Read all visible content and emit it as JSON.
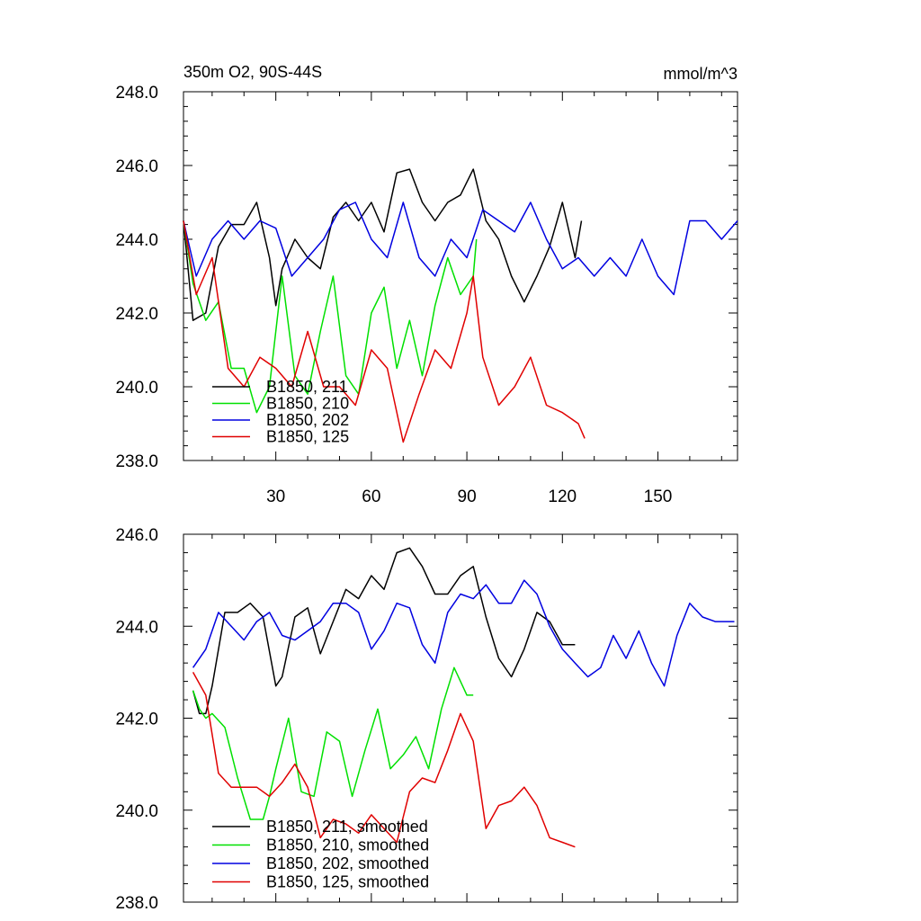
{
  "chart_data": [
    {
      "type": "line",
      "title": "350m O2, 90S-44S",
      "units": "mmol/m^3",
      "xlabel": "",
      "ylabel": "",
      "xlim": [
        1,
        175
      ],
      "ylim": [
        238,
        248
      ],
      "xticks": [
        30,
        60,
        90,
        120,
        150
      ],
      "xtick_labels": [
        "30",
        "60",
        "90",
        "120",
        "150"
      ],
      "yticks": [
        238,
        240,
        242,
        244,
        246,
        248
      ],
      "ytick_labels": [
        "238.0",
        "240.0",
        "242.0",
        "244.0",
        "246.0",
        "248.0"
      ],
      "legend": "lower-left",
      "series": [
        {
          "name": "B1850, 211",
          "color": "#000000",
          "x": [
            1,
            4,
            8,
            12,
            16,
            20,
            24,
            28,
            30,
            32,
            36,
            40,
            44,
            48,
            52,
            56,
            60,
            64,
            68,
            72,
            76,
            80,
            84,
            88,
            92,
            96,
            100,
            104,
            108,
            112,
            116,
            120,
            124,
            126
          ],
          "y": [
            244.5,
            241.8,
            242.0,
            243.8,
            244.4,
            244.4,
            245.0,
            243.5,
            242.2,
            243.2,
            244.0,
            243.5,
            243.2,
            244.6,
            245.0,
            244.5,
            245.0,
            244.2,
            245.8,
            245.9,
            245.0,
            244.5,
            245.0,
            245.2,
            245.9,
            244.5,
            244.0,
            243.0,
            242.3,
            243.0,
            243.8,
            245.0,
            243.5,
            244.5
          ]
        },
        {
          "name": "B1850, 210",
          "color": "#00e000",
          "x": [
            1,
            4,
            8,
            12,
            16,
            20,
            24,
            28,
            32,
            36,
            40,
            44,
            48,
            52,
            56,
            60,
            64,
            68,
            72,
            76,
            80,
            84,
            88,
            92,
            93
          ],
          "y": [
            244.5,
            242.8,
            241.8,
            242.3,
            240.5,
            240.5,
            239.3,
            240.0,
            243.0,
            240.3,
            239.8,
            241.5,
            243.0,
            240.3,
            239.8,
            242.0,
            242.7,
            240.5,
            241.8,
            240.3,
            242.2,
            243.5,
            242.5,
            243.0,
            244.0
          ]
        },
        {
          "name": "B1850, 202",
          "color": "#0000e0",
          "x": [
            1,
            5,
            10,
            15,
            20,
            25,
            30,
            35,
            40,
            45,
            50,
            55,
            60,
            65,
            70,
            75,
            80,
            85,
            90,
            95,
            100,
            105,
            110,
            115,
            120,
            125,
            130,
            135,
            140,
            145,
            150,
            155,
            160,
            165,
            170,
            175
          ],
          "y": [
            244.5,
            243.0,
            244.0,
            244.5,
            244.0,
            244.5,
            244.3,
            243.0,
            243.5,
            244.0,
            244.8,
            245.0,
            244.0,
            243.5,
            245.0,
            243.5,
            243.0,
            244.0,
            243.5,
            244.8,
            244.5,
            244.2,
            245.0,
            244.0,
            243.2,
            243.5,
            243.0,
            243.5,
            243.0,
            244.0,
            243.0,
            242.5,
            244.5,
            244.5,
            244.0,
            244.5
          ]
        },
        {
          "name": "B1850, 125",
          "color": "#e00000",
          "x": [
            1,
            5,
            10,
            15,
            20,
            25,
            30,
            35,
            40,
            45,
            50,
            55,
            60,
            65,
            70,
            75,
            80,
            85,
            90,
            92,
            95,
            100,
            105,
            110,
            115,
            120,
            125,
            127
          ],
          "y": [
            244.5,
            242.5,
            243.5,
            240.5,
            240.0,
            240.8,
            240.5,
            240.0,
            241.5,
            240.0,
            240.0,
            239.5,
            241.0,
            240.5,
            238.5,
            239.8,
            241.0,
            240.5,
            242.0,
            243.0,
            240.8,
            239.5,
            240.0,
            240.8,
            239.5,
            239.3,
            239.0,
            238.6
          ]
        }
      ]
    },
    {
      "type": "line",
      "title": "",
      "xlabel": "",
      "ylabel": "",
      "xlim": [
        1,
        175
      ],
      "ylim": [
        238,
        246
      ],
      "xticks": [
        30,
        60,
        90,
        120,
        150
      ],
      "yticks": [
        238,
        240,
        242,
        244,
        246
      ],
      "ytick_labels": [
        "238.0",
        "240.0",
        "242.0",
        "244.0",
        "246.0"
      ],
      "legend": "lower-left",
      "series": [
        {
          "name": "B1850, 211, smoothed",
          "color": "#000000",
          "x": [
            4,
            6,
            8,
            10,
            14,
            18,
            22,
            26,
            30,
            32,
            36,
            40,
            44,
            48,
            52,
            56,
            60,
            64,
            66,
            68,
            72,
            76,
            80,
            84,
            88,
            92,
            96,
            100,
            104,
            108,
            112,
            116,
            120,
            124
          ],
          "y": [
            242.6,
            242.1,
            242.1,
            242.7,
            244.3,
            244.3,
            244.5,
            244.2,
            242.7,
            242.9,
            244.2,
            244.4,
            243.4,
            244.1,
            244.8,
            244.6,
            245.1,
            244.8,
            245.2,
            245.6,
            245.7,
            245.3,
            244.7,
            244.7,
            245.1,
            245.3,
            244.2,
            243.3,
            242.9,
            243.5,
            244.3,
            244.1,
            243.6,
            243.6
          ]
        },
        {
          "name": "B1850, 210, smoothed",
          "color": "#00e000",
          "x": [
            4,
            6,
            8,
            10,
            14,
            18,
            22,
            26,
            28,
            30,
            34,
            38,
            42,
            46,
            50,
            54,
            58,
            62,
            66,
            70,
            74,
            78,
            82,
            86,
            90,
            92
          ],
          "y": [
            242.6,
            242.2,
            242.0,
            242.1,
            241.8,
            240.7,
            239.8,
            239.8,
            240.3,
            240.9,
            242.0,
            240.4,
            240.3,
            241.7,
            241.5,
            240.3,
            241.3,
            242.2,
            240.9,
            241.2,
            241.6,
            240.9,
            242.2,
            243.1,
            242.5,
            242.5
          ]
        },
        {
          "name": "B1850, 202, smoothed",
          "color": "#0000e0",
          "x": [
            4,
            8,
            12,
            16,
            20,
            24,
            28,
            32,
            36,
            40,
            44,
            48,
            52,
            56,
            60,
            64,
            68,
            72,
            76,
            80,
            84,
            88,
            92,
            96,
            100,
            104,
            108,
            112,
            116,
            120,
            124,
            128,
            132,
            136,
            140,
            144,
            148,
            152,
            156,
            160,
            164,
            168,
            172,
            174
          ],
          "y": [
            243.1,
            243.5,
            244.3,
            244.0,
            243.7,
            244.1,
            244.3,
            243.8,
            243.7,
            243.9,
            244.1,
            244.5,
            244.5,
            244.3,
            243.5,
            243.9,
            244.5,
            244.4,
            243.6,
            243.2,
            244.3,
            244.7,
            244.6,
            244.9,
            244.5,
            244.5,
            245.0,
            244.7,
            244.0,
            243.5,
            243.2,
            242.9,
            243.1,
            243.8,
            243.3,
            243.9,
            243.2,
            242.7,
            243.8,
            244.5,
            244.2,
            244.1,
            244.1,
            244.1
          ]
        },
        {
          "name": "B1850, 125, smoothed",
          "color": "#e00000",
          "x": [
            4,
            8,
            12,
            16,
            20,
            24,
            28,
            32,
            36,
            40,
            44,
            48,
            52,
            56,
            60,
            64,
            68,
            72,
            76,
            80,
            84,
            88,
            92,
            96,
            100,
            104,
            108,
            112,
            116,
            120,
            124
          ],
          "y": [
            243.0,
            242.5,
            240.8,
            240.5,
            240.5,
            240.5,
            240.3,
            240.6,
            241.0,
            240.5,
            239.4,
            239.8,
            239.7,
            239.5,
            239.9,
            239.6,
            239.3,
            240.4,
            240.7,
            240.6,
            241.3,
            242.1,
            241.5,
            239.6,
            240.1,
            240.2,
            240.5,
            240.1,
            239.4,
            239.3,
            239.2
          ]
        }
      ]
    }
  ]
}
